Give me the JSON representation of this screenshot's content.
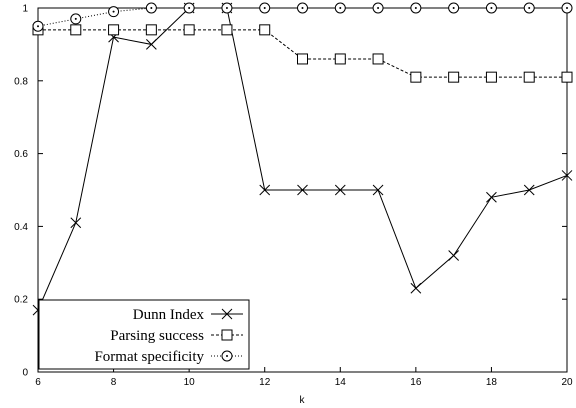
{
  "chart_data": {
    "type": "line",
    "xlabel": "k",
    "ylabel": "",
    "x": [
      6,
      7,
      8,
      9,
      10,
      11,
      12,
      13,
      14,
      15,
      16,
      17,
      18,
      19,
      20
    ],
    "xlim": [
      6,
      20
    ],
    "ylim": [
      0,
      1
    ],
    "xticks": [
      "6",
      "8",
      "10",
      "12",
      "14",
      "16",
      "18",
      "20"
    ],
    "yticks": [
      "0",
      "0.2",
      "0.4",
      "0.6",
      "0.8",
      "1"
    ],
    "grid": false,
    "legend_position": "bottom-left",
    "series": [
      {
        "name": "Dunn Index",
        "marker": "x",
        "line_style": "solid",
        "values": [
          0.17,
          0.41,
          0.92,
          0.9,
          1.0,
          1.0,
          0.5,
          0.5,
          0.5,
          0.5,
          0.23,
          0.32,
          0.48,
          0.5,
          0.54
        ]
      },
      {
        "name": "Parsing success",
        "marker": "square",
        "line_style": "dashed",
        "values": [
          0.94,
          0.94,
          0.94,
          0.94,
          0.94,
          0.94,
          0.94,
          0.86,
          0.86,
          0.86,
          0.81,
          0.81,
          0.81,
          0.81,
          0.81
        ]
      },
      {
        "name": "Format specificity",
        "marker": "circle",
        "line_style": "dotted",
        "values": [
          0.95,
          0.97,
          0.99,
          1.0,
          1.0,
          1.0,
          1.0,
          1.0,
          1.0,
          1.0,
          1.0,
          1.0,
          1.0,
          1.0,
          1.0
        ]
      }
    ]
  }
}
